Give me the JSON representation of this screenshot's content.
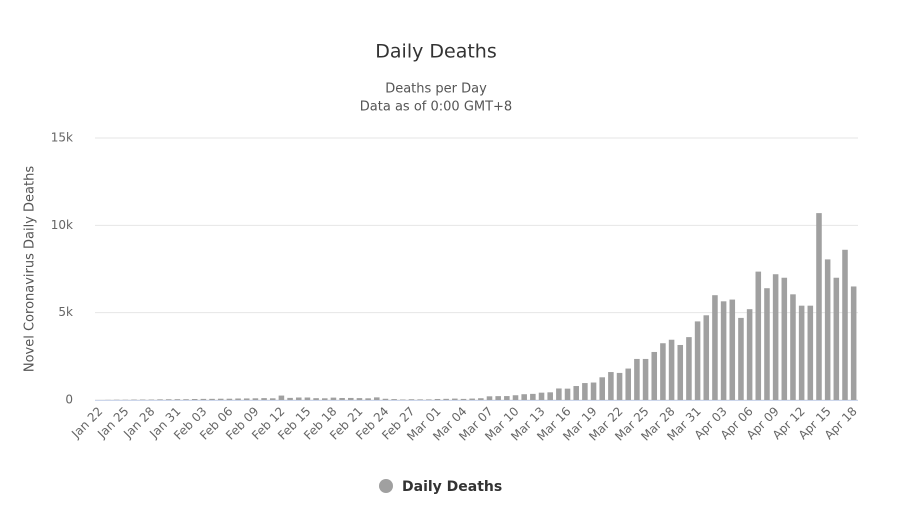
{
  "chart_data": {
    "type": "bar",
    "title": "Daily Deaths",
    "subtitle": [
      "Deaths per Day",
      "Data as of 0:00 GMT+8"
    ],
    "y_label": "Novel Coronavirus Daily Deaths",
    "categories": [
      "Jan 22",
      null,
      null,
      "Jan 25",
      null,
      null,
      "Jan 28",
      null,
      null,
      "Jan 31",
      null,
      null,
      "Feb 03",
      null,
      null,
      "Feb 06",
      null,
      null,
      "Feb 09",
      null,
      null,
      "Feb 12",
      null,
      null,
      "Feb 15",
      null,
      null,
      "Feb 18",
      null,
      null,
      "Feb 21",
      null,
      null,
      "Feb 24",
      null,
      null,
      "Feb 27",
      null,
      null,
      "Mar 01",
      null,
      null,
      "Mar 04",
      null,
      null,
      "Mar 07",
      null,
      null,
      "Mar 10",
      null,
      null,
      "Mar 13",
      null,
      null,
      "Mar 16",
      null,
      null,
      "Mar 19",
      null,
      null,
      "Mar 22",
      null,
      null,
      "Mar 25",
      null,
      null,
      "Mar 28",
      null,
      null,
      "Mar 31",
      null,
      null,
      "Apr 03",
      null,
      null,
      "Apr 06",
      null,
      null,
      "Apr 09",
      null,
      null,
      "Apr 12",
      null,
      null,
      "Apr 15",
      null,
      null,
      "Apr 18"
    ],
    "series": [
      {
        "name": "Daily Deaths",
        "color": "#a0a0a0",
        "values": [
          0,
          8,
          16,
          15,
          24,
          26,
          26,
          38,
          43,
          46,
          45,
          57,
          64,
          66,
          73,
          73,
          86,
          89,
          97,
          108,
          97,
          254,
          121,
          143,
          142,
          105,
          98,
          136,
          115,
          118,
          109,
          97,
          150,
          71,
          52,
          29,
          44,
          37,
          35,
          58,
          67,
          81,
          63,
          82,
          101,
          211,
          222,
          225,
          272,
          331,
          350,
          420,
          440,
          660,
          650,
          800,
          970,
          1000,
          1300,
          1600,
          1550,
          1800,
          2350,
          2350,
          2750,
          3250,
          3450,
          3150,
          3600,
          4500,
          4850,
          6000,
          5650,
          5750,
          4700,
          5200,
          7350,
          6400,
          7200,
          7000,
          6050,
          5400,
          5400,
          10700,
          8050,
          7000,
          8600,
          6500
        ]
      }
    ],
    "ylim": [
      0,
      15000
    ],
    "yticks": [
      0,
      {
        "value": 5000,
        "label": "5k"
      },
      {
        "value": 10000,
        "label": "10k"
      },
      {
        "value": 15000,
        "label": "15k"
      }
    ],
    "grid": true
  }
}
